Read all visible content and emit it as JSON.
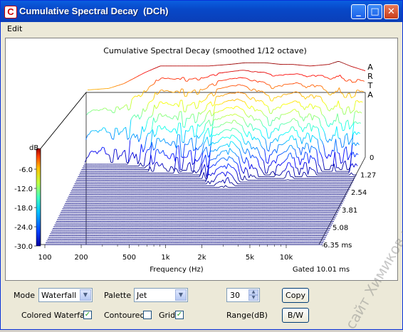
{
  "window": {
    "title": "Cumulative Spectral Decay  (DCh)",
    "minimize": "_",
    "maximize": "□",
    "close": "✕"
  },
  "menu": {
    "edit_label": "Edit"
  },
  "chart_data": {
    "type": "waterfall",
    "title": "Cumulative Spectral Decay (smoothed 1/12 octave)",
    "brand": "ARTA",
    "xlabel": "Frequency (Hz)",
    "x_ticks": [
      "100",
      "200",
      "500",
      "1k",
      "2k",
      "5k",
      "10k"
    ],
    "x_scale": "log",
    "xlim": [
      100,
      20000
    ],
    "ylabel": "dB",
    "y_ticks": [
      "-6.0",
      "-12.0",
      "-18.0",
      "-24.0",
      "-30.0"
    ],
    "ylim": [
      -30,
      0
    ],
    "z_ticks": [
      "0",
      "1.27",
      "2.54",
      "3.81",
      "5.08",
      "6.35 ms"
    ],
    "gate_label": "Gated 10.01 ms",
    "colormap": "Jet",
    "slices": 50,
    "base_response_db": {
      "freq": [
        100,
        150,
        200,
        300,
        400,
        500,
        700,
        1000,
        1500,
        2000,
        3000,
        4000,
        5000,
        7000,
        10000,
        12000,
        15000,
        20000
      ],
      "level": [
        -9,
        -8.5,
        -7,
        -3.5,
        -1.5,
        -1.5,
        -1.5,
        -1.5,
        -1,
        -0.5,
        -0.5,
        -1,
        -1,
        -1.5,
        -1,
        0,
        -1.5,
        -3
      ]
    }
  },
  "controls": {
    "mode_label": "Mode",
    "mode_value": "Waterfall",
    "palette_label": "Palette",
    "palette_value": "Jet",
    "range_value": "30",
    "range_label": "Range(dB)",
    "copy_label": "Copy",
    "bw_label": "B/W",
    "colored_waterfall_label": "Colored Waterfall",
    "colored_waterfall_checked": true,
    "contoured_label": "Contoured",
    "contoured_checked": false,
    "grid_label": "Grid",
    "grid_checked": true
  },
  "watermark": "сайт Химиков www.cxo.ru"
}
